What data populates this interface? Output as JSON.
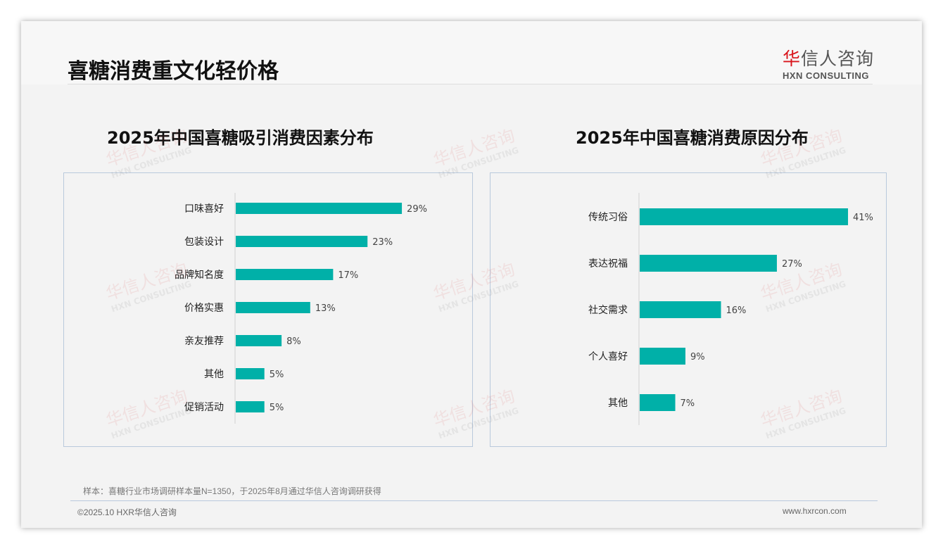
{
  "header": {
    "title": "喜糖消费重文化轻价格",
    "logo_cn_red": "华",
    "logo_cn": "信人咨询",
    "logo_en": "HXN CONSULTING"
  },
  "watermark": {
    "cn": "华信人咨询",
    "en": "HXN CONSULTING"
  },
  "colors": {
    "bar": "#00b0a8",
    "axis": "#d0d0d0"
  },
  "chart_data": [
    {
      "type": "bar",
      "orientation": "horizontal",
      "title": "2025年中国喜糖吸引消费因素分布",
      "categories": [
        "口味喜好",
        "包装设计",
        "品牌知名度",
        "价格实惠",
        "亲友推荐",
        "其他",
        "促销活动"
      ],
      "values": [
        29,
        23,
        17,
        13,
        8,
        5,
        5
      ],
      "labels": [
        "29%",
        "23%",
        "17%",
        "13%",
        "8%",
        "5%",
        "5%"
      ],
      "unit": "%",
      "xlim": [
        0,
        40
      ]
    },
    {
      "type": "bar",
      "orientation": "horizontal",
      "title": "2025年中国喜糖消费原因分布",
      "categories": [
        "传统习俗",
        "表达祝福",
        "社交需求",
        "个人喜好",
        "其他"
      ],
      "values": [
        41,
        27,
        16,
        9,
        7
      ],
      "labels": [
        "41%",
        "27%",
        "16%",
        "9%",
        "7%"
      ],
      "unit": "%",
      "xlim": [
        0,
        50
      ]
    }
  ],
  "footer": {
    "note": "样本：喜糖行业市场调研样本量N=1350，于2025年8月通过华信人咨询调研获得",
    "copyright": "©2025.10 HXR华信人咨询",
    "website": "www.hxrcon.com"
  }
}
